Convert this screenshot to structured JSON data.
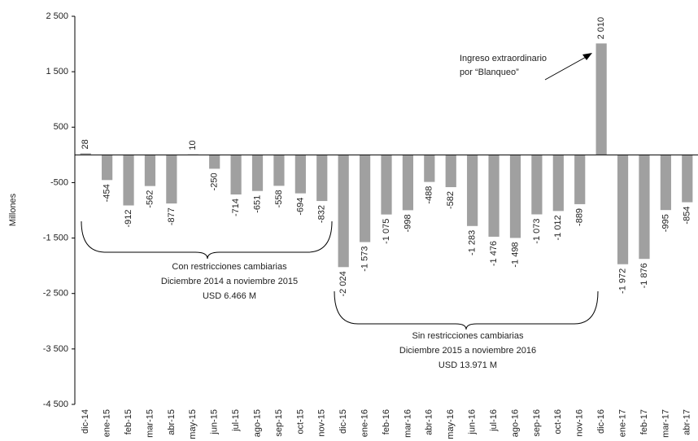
{
  "chart_data": {
    "type": "bar",
    "y_label": "Millones",
    "categories": [
      "dic-14",
      "ene-15",
      "feb-15",
      "mar-15",
      "abr-15",
      "may-15",
      "jun-15",
      "jul-15",
      "ago-15",
      "sep-15",
      "oct-15",
      "nov-15",
      "dic-15",
      "ene-16",
      "feb-16",
      "mar-16",
      "abr-16",
      "may-16",
      "jun-16",
      "jul-16",
      "ago-16",
      "sep-16",
      "oct-16",
      "nov-16",
      "dic-16",
      "ene-17",
      "feb-17",
      "mar-17",
      "abr-17"
    ],
    "values": [
      28,
      -454,
      -912,
      -562,
      -877,
      10,
      -250,
      -714,
      -651,
      -558,
      -694,
      -832,
      -2024,
      -1573,
      -1075,
      -998,
      -488,
      -582,
      -1283,
      -1476,
      -1498,
      -1073,
      -1012,
      -889,
      2010,
      -1972,
      -1876,
      -995,
      -854
    ],
    "value_labels": [
      "28",
      "-454",
      "-912",
      "-562",
      "-877",
      "10",
      "-250",
      "-714",
      "-651",
      "-558",
      "-694",
      "-832",
      "-2 024",
      "-1 573",
      "-1 075",
      "-998",
      "-488",
      "-582",
      "-1 283",
      "-1 476",
      "-1 498",
      "-1 073",
      "-1 012",
      "-889",
      "2 010",
      "-1 972",
      "-1 876",
      "-995",
      "-854"
    ],
    "color": "#a0a0a0",
    "ylim": [
      -4500,
      2500
    ],
    "yticks": [
      {
        "value": 2500,
        "label": "2 500"
      },
      {
        "value": 1500,
        "label": "1 500"
      },
      500,
      -500,
      {
        "value": -1500,
        "label": "-1 500"
      },
      {
        "value": -2500,
        "label": "-2 500"
      },
      {
        "value": -3500,
        "label": "-3 500"
      },
      {
        "value": -4500,
        "label": "-4 500"
      }
    ],
    "annotations": [
      [
        "Ingreso extraordinario",
        "por “Blanqueo”"
      ],
      [
        "Con restricciones cambiarias",
        "Diciembre 2014 a noviembre 2015",
        "USD 6.466 M"
      ],
      [
        "Sin restricciones cambiarias",
        "Diciembre 2015 a noviembre 2016",
        "USD 13.971 M"
      ]
    ]
  }
}
